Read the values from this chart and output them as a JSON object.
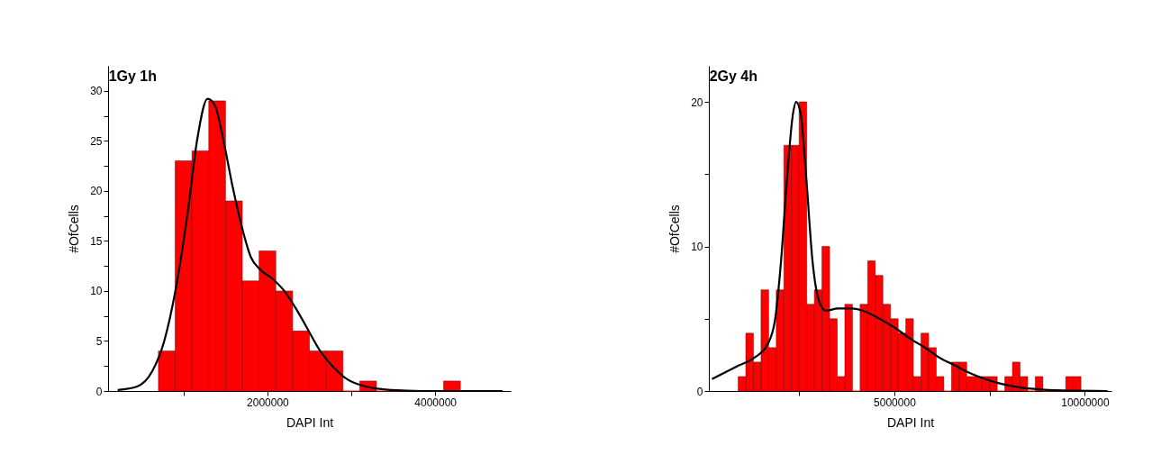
{
  "chart_data": [
    {
      "type": "histogram",
      "title": "1Gy 1h",
      "xlabel": "DAPI Int",
      "ylabel": "#OfCells",
      "color": "#ff0000",
      "bins": [
        700000,
        900000,
        1100000,
        1300000,
        1500000,
        1700000,
        1900000,
        2100000,
        2300000,
        2500000,
        2700000,
        2900000,
        3100000,
        3300000,
        3500000,
        3700000,
        3900000,
        4100000,
        4300000
      ],
      "values": [
        4,
        23,
        24,
        29,
        19,
        11,
        14,
        10,
        6,
        4,
        4,
        0,
        1,
        0,
        0,
        0,
        0,
        1
      ],
      "series": [
        {
          "type": "line",
          "color": "#000000",
          "x": [
            214000,
            446000,
            625000,
            768000,
            910000,
            1054000,
            1161000,
            1286000,
            1375000,
            1482000,
            1589000,
            1696000,
            1804000,
            1911000,
            2054000,
            2196000,
            2339000,
            2482000,
            2625000,
            2768000,
            2946000,
            3196000,
            3482000,
            3839000,
            4804000
          ],
          "values": [
            0.1,
            0.45,
            1.95,
            4.95,
            10.35,
            18.15,
            25.05,
            29.2,
            28.5,
            24.75,
            20.25,
            16.35,
            13.35,
            12.15,
            11.25,
            10.05,
            8.25,
            6.15,
            4.05,
            2.55,
            1.2,
            0.4,
            0.1,
            0,
            0
          ]
        }
      ],
      "xlim": [
        100000,
        4900000
      ],
      "ylim": [
        0,
        32.5
      ],
      "xticks": [
        {
          "value": 1000000,
          "label": null
        },
        2000000,
        {
          "value": 3000000,
          "label": null
        },
        4000000
      ],
      "yticks": [
        0,
        {
          "value": 2.5,
          "label": null
        },
        5,
        {
          "value": 7.5,
          "label": null
        },
        10,
        {
          "value": 12.5,
          "label": null
        },
        15,
        {
          "value": 17.5,
          "label": null
        },
        20,
        {
          "value": 22.5,
          "label": null
        },
        25,
        {
          "value": 27.5,
          "label": null
        },
        30
      ]
    },
    {
      "type": "histogram",
      "title": "2Gy 4h",
      "xlabel": "DAPI Int",
      "ylabel": "#OfCells",
      "color": "#ff0000",
      "bins": [
        900000,
        1100000,
        1300000,
        1500000,
        1700000,
        1900000,
        2100000,
        2300000,
        2500000,
        2700000,
        2900000,
        3100000,
        3300000,
        3500000,
        3700000,
        3900000,
        4100000,
        4300000,
        4500000,
        4700000,
        4900000,
        5100000,
        5300000,
        5500000,
        5700000,
        5900000,
        6100000,
        6300000,
        6500000,
        6700000,
        6900000,
        7100000,
        7300000,
        7500000,
        7700000,
        7900000,
        8100000,
        8300000,
        8500000,
        8700000,
        8900000,
        9100000,
        9300000,
        9500000,
        9700000,
        9900000
      ],
      "values": [
        1,
        4,
        2,
        7,
        3,
        7,
        17,
        17,
        20,
        6,
        7,
        10,
        5,
        1,
        6,
        0,
        6,
        9,
        8,
        6,
        5,
        4,
        5,
        1,
        4,
        3,
        1,
        0,
        2,
        2,
        1,
        1,
        1,
        1,
        0,
        1,
        2,
        1,
        0,
        1,
        0,
        0,
        0,
        1,
        1
      ],
      "series": [
        {
          "type": "line",
          "color": "#000000",
          "x": [
            211000,
            920000,
            1310000,
            1670000,
            1865000,
            2020000,
            2180000,
            2340000,
            2420000,
            2540000,
            2690000,
            2850000,
            3010000,
            3200000,
            3520000,
            3870000,
            4230000,
            4620000,
            5020000,
            5410000,
            5800000,
            6200000,
            6590000,
            6980000,
            7380000,
            7770000,
            8240000,
            8870000,
            9660000,
            10600000
          ],
          "values": [
            0.83,
            1.77,
            2.28,
            3.22,
            4.88,
            8.83,
            14.64,
            19.2,
            20,
            19.2,
            14.64,
            9.03,
            6.33,
            5.55,
            5.71,
            5.71,
            5.5,
            4.98,
            4.36,
            3.63,
            3.01,
            2.28,
            1.77,
            1.25,
            0.83,
            0.52,
            0.27,
            0.1,
            0.02,
            0
          ]
        }
      ],
      "xlim": [
        130000,
        10700000
      ],
      "ylim": [
        0,
        22.5
      ],
      "xticks": [
        {
          "value": 2500000,
          "label": null
        },
        5000000,
        {
          "value": 7500000,
          "label": null
        },
        10000000
      ],
      "yticks": [
        0,
        {
          "value": 5,
          "label": null
        },
        10,
        {
          "value": 15,
          "label": null
        },
        20
      ]
    }
  ]
}
